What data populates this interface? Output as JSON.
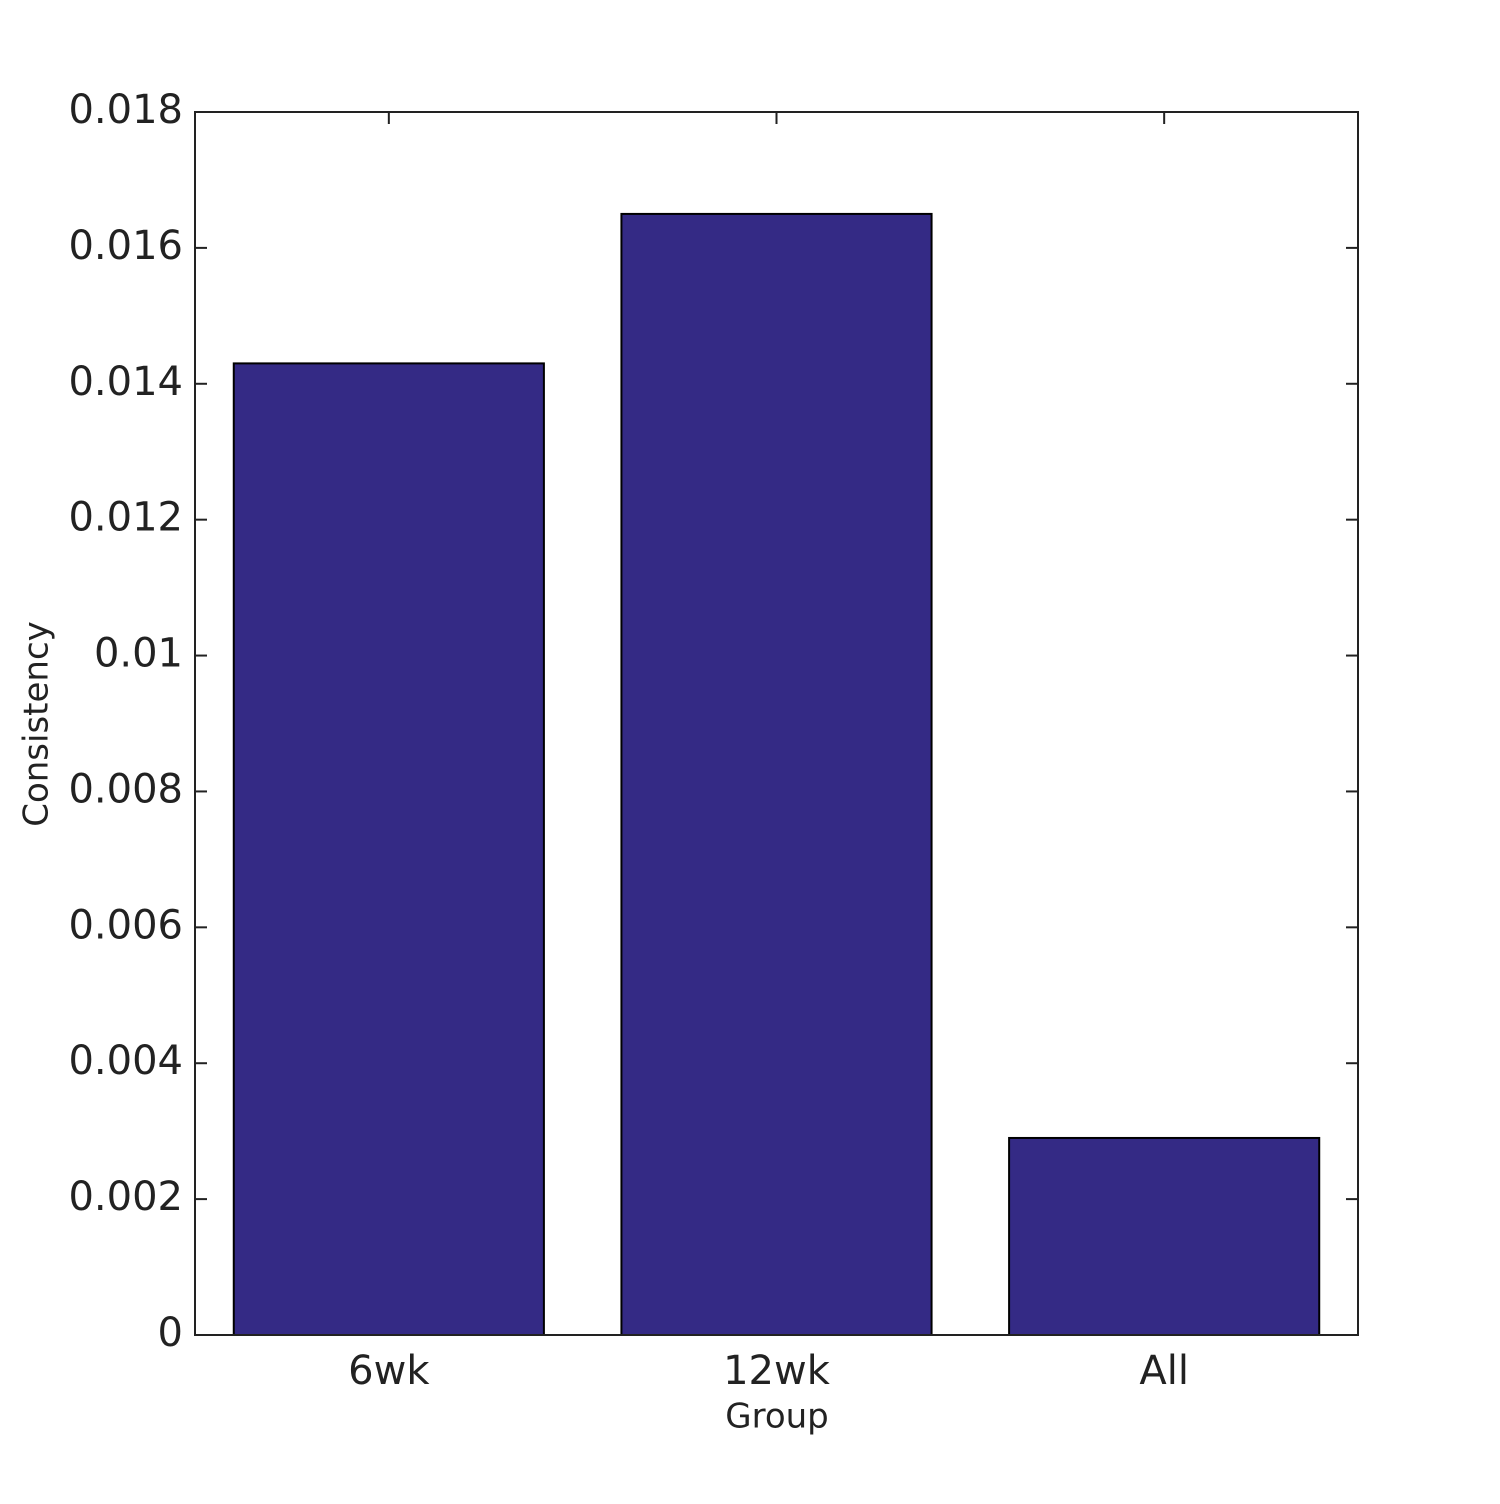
{
  "chart_data": {
    "type": "bar",
    "x_label": "Group",
    "y_label": "Consistency",
    "categories": [
      "6wk",
      "12wk",
      "All"
    ],
    "values": [
      0.0143,
      0.0165,
      0.0029
    ],
    "color": "#342a85",
    "ylim": [
      0,
      0.018
    ],
    "yticks": [
      0,
      0.002,
      0.004,
      0.006,
      0.008,
      0.01,
      0.012,
      0.014,
      0.016,
      0.018
    ],
    "grid": false
  }
}
